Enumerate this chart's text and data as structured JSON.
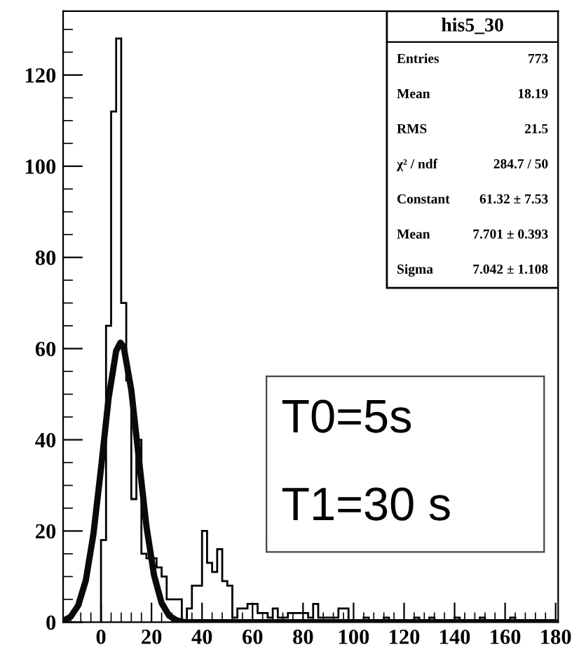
{
  "chart_data": {
    "type": "histogram",
    "series": [
      {
        "color": "#000000",
        "bins": [
          0,
          2,
          4,
          6,
          8,
          10,
          12,
          14,
          16,
          18,
          20,
          22,
          24,
          26,
          28,
          30,
          32,
          34,
          36,
          38,
          40,
          42,
          44,
          46,
          48,
          50,
          52,
          54,
          56,
          58,
          60,
          62,
          64,
          66,
          68,
          70,
          72,
          74,
          76,
          78,
          80,
          82,
          84,
          86,
          88,
          90,
          92,
          94,
          96,
          98,
          100,
          102,
          104,
          106,
          108,
          110,
          112,
          114,
          116,
          118,
          120,
          122,
          124,
          126,
          128,
          130,
          132,
          134,
          136,
          138,
          140,
          142,
          144,
          146,
          148,
          150,
          152,
          154,
          156,
          158,
          160,
          162,
          164,
          166,
          168,
          170,
          172,
          174,
          176,
          178,
          180
        ],
        "values": [
          18,
          65,
          112,
          128,
          70,
          53,
          27,
          40,
          15,
          14,
          14,
          12,
          10,
          5,
          5,
          5,
          0,
          3,
          8,
          8,
          20,
          13,
          11,
          16,
          9,
          8,
          1,
          3,
          3,
          4,
          4,
          2,
          2,
          1,
          3,
          1,
          1,
          2,
          2,
          2,
          2,
          1,
          4,
          1,
          1,
          1,
          1,
          3,
          3,
          0,
          0,
          0,
          1,
          0,
          0,
          0,
          1,
          0,
          0,
          0,
          0,
          0,
          1,
          0,
          0,
          1,
          0,
          0,
          0,
          0,
          1,
          0,
          0,
          0,
          0,
          1,
          0,
          0,
          0,
          0,
          0,
          1,
          0,
          0,
          0,
          0,
          0,
          0,
          0,
          0
        ]
      },
      {
        "type": "line",
        "color": "#0a0a0a",
        "x": [
          -15,
          -12,
          -9,
          -6,
          -3,
          0,
          3,
          6,
          7.7,
          9,
          12,
          15,
          18,
          21,
          24,
          27,
          30,
          33,
          36,
          180
        ],
        "values": [
          0.3,
          1.2,
          3.7,
          9.2,
          19.3,
          33.7,
          49.1,
          59.5,
          61.3,
          60.3,
          50.9,
          35.8,
          21.0,
          10.3,
          4.2,
          1.4,
          0.4,
          0,
          0,
          0
        ]
      }
    ],
    "xlim": [
      -15,
      181
    ],
    "ylim": [
      0,
      134
    ],
    "xticks": [
      0,
      20,
      40,
      60,
      80,
      100,
      120,
      140,
      160,
      180
    ],
    "yticks": [
      0,
      20,
      40,
      60,
      80,
      100,
      120
    ],
    "grid": false,
    "title": "his5_30",
    "annotations": [
      "Entries",
      "773",
      "Mean",
      "18.19",
      "RMS",
      "21.5",
      "χ² / ndf",
      "284.7 / 50",
      "Constant",
      "61.32 ± 7.53",
      "Mean",
      "7.701 ± 0.393",
      "Sigma",
      "7.042 ± 1.108",
      "T0=5s",
      "T1=30 s"
    ]
  }
}
